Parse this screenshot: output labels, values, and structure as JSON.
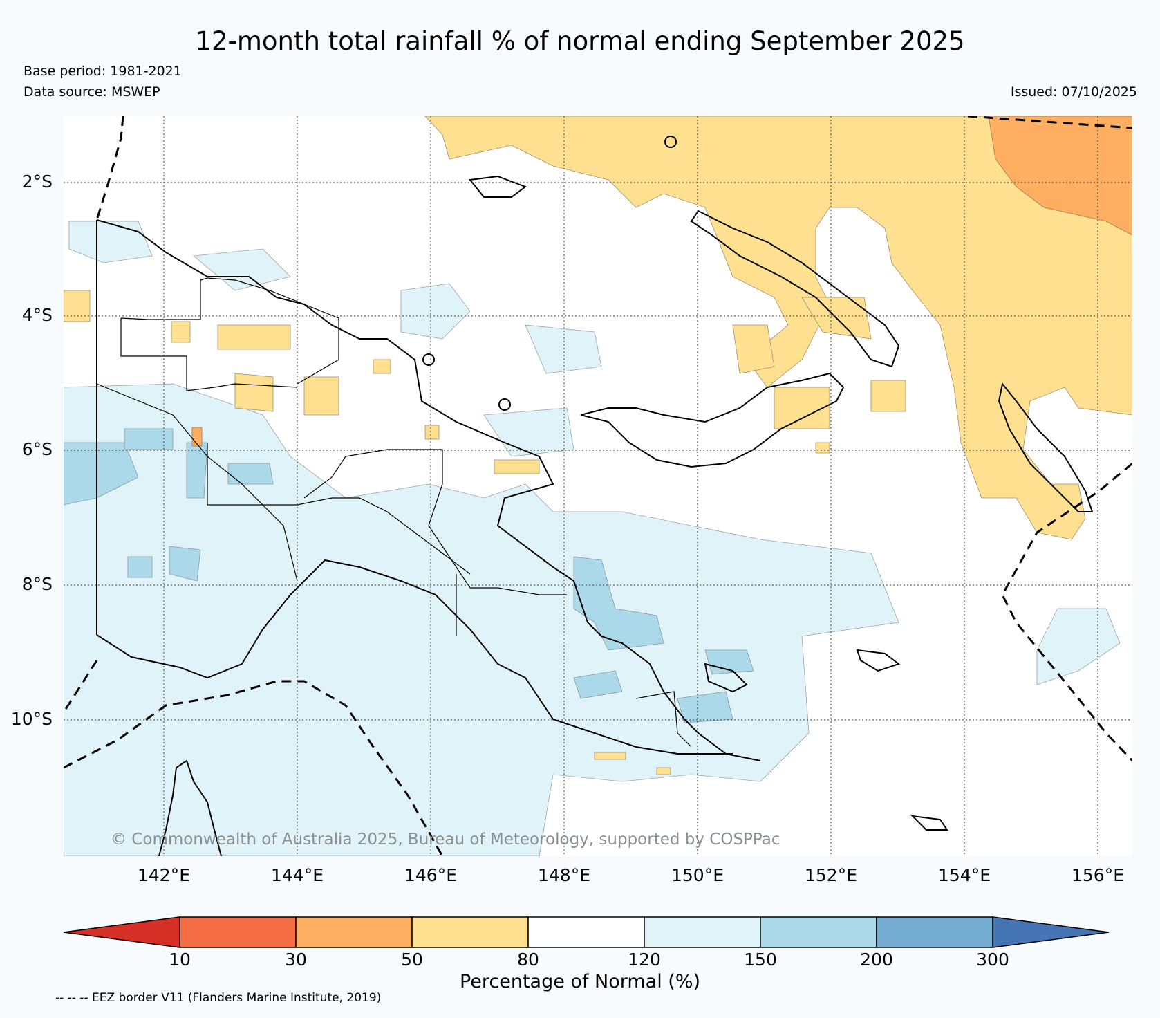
{
  "title": "12-month total rainfall % of normal ending September 2025",
  "base_period": "Base period: 1981-2021",
  "data_source": "Data source: MSWEP",
  "issued": "Issued: 07/10/2025",
  "map": {
    "latitude_labels": [
      "2°S",
      "4°S",
      "6°S",
      "8°S",
      "10°S"
    ],
    "longitude_labels": [
      "142°E",
      "144°E",
      "146°E",
      "148°E",
      "150°E",
      "152°E",
      "154°E",
      "156°E"
    ],
    "copyright": "© Commonwealth of Australia 2025, Bureau of Meteorology, supported by COSPPac"
  },
  "colorbar": {
    "title": "Percentage of Normal (%)",
    "ticks": [
      "10",
      "30",
      "50",
      "80",
      "120",
      "150",
      "200",
      "300"
    ],
    "colors": [
      "#d73027",
      "#f46d43",
      "#fdae61",
      "#fee090",
      "#ffffff",
      "#e0f3f8",
      "#abd9e9",
      "#74add1",
      "#4575b4"
    ]
  },
  "footnote": "-- -- -- EEZ border V11 (Flanders Marine Institute, 2019)"
}
